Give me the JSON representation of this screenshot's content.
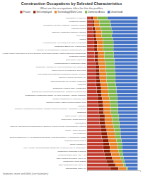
{
  "chart_data": {
    "type": "bar",
    "orientation": "horizontal",
    "stacked": true,
    "title": "Construction Occupations by Selected Characteristics",
    "subtitle": "What are the occupations titles for this the profiles",
    "footnote": "footnotes: more and (title) (see footnotes)",
    "categories": [
      "Administrative or residence",
      "Construction manager",
      "Professional (Specialty) Positions: Architects, engineers",
      "Production Forgers",
      "Laborers & construction materials, extractors",
      "Floor Layers",
      "Painters",
      "*Helpers workers+ in or Similar & 21 other Help workerst",
      "Maintenance Employees, An Supervisors",
      "Planning, Pre-Commissioning, Postcomm construction more-line",
      "*Health & Safety Supervisors (or Service Electricity Supervisors extended Heads of Inspection & Engineering)",
      "Construction Manager",
      "Supervisor(s) (employees)",
      "Professionals who & construction in trade",
      "Construction Assembler or Helpers Construction More Employees",
      "Sales & Service or Maintenance Supervisors",
      "Post-Construction/construction Construction Industry (Physical)",
      "Laborers or similar supervisors, etc.",
      "Subcontractors Buying, operating, Contractors",
      "contractors",
      "Construction Heads for trade / Constructors",
      "Business Development and/or/Substructure, Subsidiary for Supervisors",
      "Construction & Construction Industry, Inc. more (Facilities): Aspiring, technology",
      "Industrial Construction or Hydropower Plant",
      "Laborers In Supply Chain In General Practice (From",
      "Substation",
      "Chemical & Construction Companies, Industrial equipment Insurance, Manufacture, plumbing",
      "Contractors",
      "Labour Clients + Labourers",
      "Union Group / Clients Labourers",
      "Administratives",
      "FIND List Associations Of Subassociation & Efforts for leading Facilitate Implementations / Laborers",
      "Project + Timber Operators",
      "Mine Contractors",
      "Electrical Engineers & HVAC Installations Operations: Projecting engineer (Air Conditioning, Mining)",
      "Production at supervisors of",
      "Industry managers or",
      "Heavy, Industry machinist/REGEN RESERVES (or laborers, more & Maintenance)",
      "Infrastructure Technicians & Supplies",
      "Construction/Build Office, and + And",
      "Other Industrial Operations, and & Any",
      "Construction & Trade Districts",
      "Other construction fields, and & Any",
      "Subcontractors, and & Any"
    ],
    "series": [
      {
        "name": "Private",
        "color": "#c0392b",
        "values": [
          8,
          10,
          10,
          11,
          12,
          12,
          13,
          14,
          14,
          14,
          15,
          15,
          15,
          16,
          16,
          16,
          17,
          17,
          18,
          18,
          19,
          19,
          20,
          21,
          21,
          22,
          23,
          23,
          24,
          24,
          25,
          26,
          27,
          28,
          29,
          30,
          31,
          32,
          33,
          34,
          36,
          38,
          41,
          46
        ]
      },
      {
        "name": "Self-employed",
        "color": "#8b1a00",
        "values": [
          4,
          4,
          4,
          5,
          5,
          5,
          6,
          6,
          6,
          6,
          7,
          7,
          7,
          7,
          8,
          8,
          8,
          8,
          8,
          9,
          9,
          9,
          9,
          9,
          10,
          10,
          10,
          10,
          11,
          11,
          11,
          11,
          12,
          12,
          12,
          13,
          13,
          13,
          13,
          14,
          14,
          15,
          15,
          16
        ]
      },
      {
        "name": "Technology/Work Crew",
        "color": "#e67e22",
        "values": [
          8,
          10,
          11,
          11,
          12,
          12,
          12,
          12,
          12,
          12,
          12,
          12,
          13,
          13,
          13,
          13,
          13,
          13,
          13,
          13,
          13,
          14,
          14,
          14,
          14,
          14,
          14,
          14,
          14,
          15,
          15,
          15,
          15,
          15,
          15,
          15,
          16,
          16,
          16,
          16,
          16,
          16,
          16,
          16
        ]
      },
      {
        "name": "Domestic Areas",
        "color": "#7ab648",
        "values": [
          20,
          22,
          22,
          21,
          21,
          20,
          20,
          20,
          20,
          20,
          19,
          19,
          19,
          18,
          18,
          18,
          18,
          18,
          17,
          17,
          17,
          16,
          16,
          16,
          15,
          15,
          14,
          14,
          14,
          13,
          13,
          12,
          12,
          11,
          11,
          10,
          9,
          8,
          8,
          7,
          6,
          5,
          4,
          3
        ]
      },
      {
        "name": "Union/trade",
        "color": "#4472c4",
        "values": [
          60,
          54,
          53,
          52,
          50,
          51,
          49,
          48,
          48,
          48,
          47,
          47,
          46,
          46,
          45,
          45,
          44,
          44,
          44,
          43,
          42,
          42,
          41,
          40,
          40,
          39,
          39,
          39,
          37,
          37,
          36,
          36,
          34,
          34,
          33,
          32,
          31,
          31,
          30,
          29,
          28,
          26,
          24,
          19
        ]
      }
    ],
    "xlim": [
      0,
      105
    ],
    "xticks": [],
    "tick_labels": "y",
    "grid": false,
    "legend": "top"
  }
}
